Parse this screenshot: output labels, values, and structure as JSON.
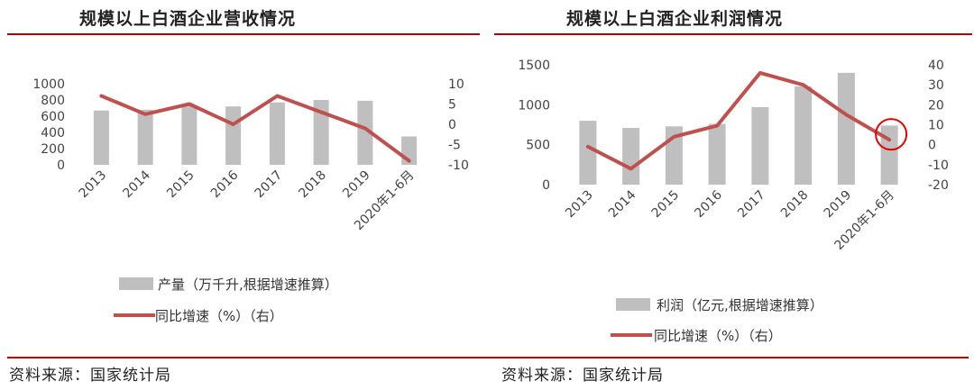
{
  "titles": {
    "left": "规模以上白酒企业营收情况",
    "right": "规模以上白酒企业利润情况"
  },
  "sources": {
    "left": "资料来源：国家统计局",
    "right": "资料来源：国家统计局"
  },
  "colors": {
    "bar": "#bfbfbf",
    "line": "#c0504d",
    "rule": "#c00000",
    "highlight": "#e60000"
  },
  "chart_data": [
    {
      "type": "bar",
      "title": "规模以上白酒企业营收情况",
      "categories": [
        "2013",
        "2014",
        "2015",
        "2016",
        "2017",
        "2018",
        "2019",
        "2020年1-6月"
      ],
      "series": [
        {
          "name": "产量（万千升,根据增速推算）",
          "axis": "left",
          "kind": "bar",
          "values": [
            670,
            680,
            720,
            720,
            770,
            800,
            790,
            350
          ]
        },
        {
          "name": "同比增速（%）（右）",
          "axis": "right",
          "kind": "line",
          "values": [
            7,
            2.5,
            5,
            0,
            7,
            3,
            -1,
            -9
          ]
        }
      ],
      "y_left": {
        "min": 0,
        "max": 1000,
        "ticks": [
          0,
          200,
          400,
          600,
          800,
          1000
        ],
        "tick_labels": [
          "0",
          "200",
          "400",
          "600",
          "800",
          "1000"
        ]
      },
      "y_right": {
        "min": -10,
        "max": 10,
        "ticks": [
          -10,
          -5,
          0,
          5,
          10
        ],
        "tick_labels": [
          "-10",
          "-5",
          "0",
          "5",
          "10"
        ]
      },
      "legend": [
        "产量（万千升,根据增速推算）",
        "同比增速（%）（右）"
      ]
    },
    {
      "type": "bar",
      "title": "规模以上白酒企业利润情况",
      "categories": [
        "2013",
        "2014",
        "2015",
        "2016",
        "2017",
        "2018",
        "2019",
        "2020年1-6月"
      ],
      "series": [
        {
          "name": "利润（亿元,根据增速推算）",
          "axis": "left",
          "kind": "bar",
          "values": [
            800,
            710,
            730,
            760,
            970,
            1230,
            1400,
            740
          ]
        },
        {
          "name": "同比增速（%）（右）",
          "axis": "right",
          "kind": "line",
          "values": [
            -1,
            -12,
            4,
            9.5,
            36,
            30,
            15,
            2.5
          ]
        }
      ],
      "y_left": {
        "min": 0,
        "max": 1500,
        "ticks": [
          0,
          500,
          1000,
          1500
        ],
        "tick_labels": [
          "0",
          "500",
          "1000",
          "1500"
        ]
      },
      "y_right": {
        "min": -20,
        "max": 40,
        "ticks": [
          -20,
          -10,
          0,
          10,
          20,
          30,
          40
        ],
        "tick_labels": [
          "-20",
          "-10",
          "0",
          "10",
          "20",
          "30",
          "40"
        ]
      },
      "legend": [
        "利润（亿元,根据增速推算）",
        "同比增速（%）（右）"
      ],
      "highlight_category": "2020年1-6月"
    }
  ]
}
